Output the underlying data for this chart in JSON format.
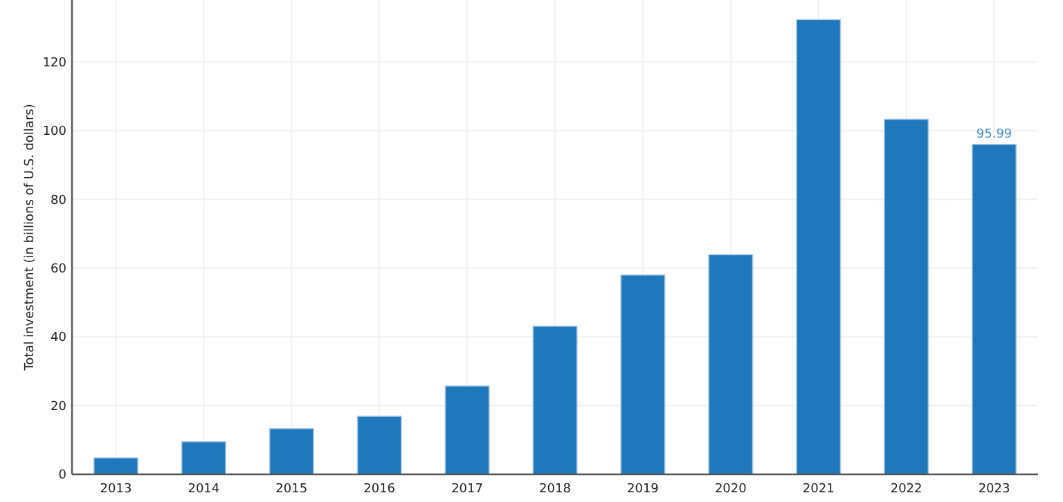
{
  "chart_data": {
    "type": "bar",
    "ylabel": "Total investment (in billions of U.S. dollars)",
    "categories": [
      "2013",
      "2014",
      "2015",
      "2016",
      "2017",
      "2018",
      "2019",
      "2020",
      "2021",
      "2022",
      "2023"
    ],
    "values": [
      4.8,
      9.5,
      13.3,
      16.9,
      25.7,
      43.1,
      58.0,
      63.9,
      132.3,
      103.3,
      95.99
    ],
    "value_labels": [
      null,
      null,
      null,
      null,
      null,
      null,
      null,
      null,
      null,
      null,
      "95.99"
    ],
    "color": "#1f77bc",
    "ylim": [
      0,
      138
    ],
    "yticks": [
      0,
      20,
      40,
      60,
      80,
      100,
      120
    ],
    "grid": true
  }
}
